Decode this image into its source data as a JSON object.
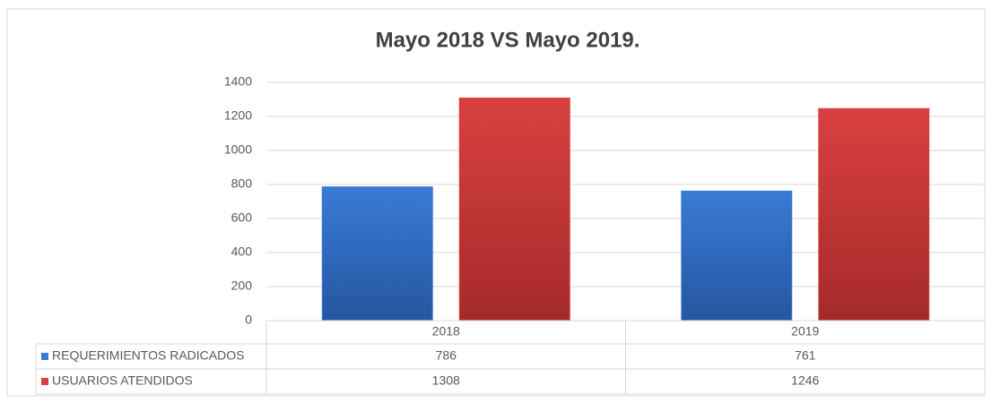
{
  "chart_data": {
    "type": "bar",
    "title": "Mayo 2018 VS Mayo 2019.",
    "categories": [
      "2018",
      "2019"
    ],
    "series": [
      {
        "name": "REQUERIMIENTOS RADICADOS",
        "color": "#3a7bd5",
        "values": [
          786,
          761
        ]
      },
      {
        "name": "USUARIOS ATENDIDOS",
        "color": "#d94040",
        "values": [
          1308,
          1246
        ]
      }
    ],
    "ylim": [
      0,
      1400
    ],
    "yticks": [
      0,
      200,
      400,
      600,
      800,
      1000,
      1200,
      1400
    ],
    "grid": true,
    "legend": "table"
  }
}
